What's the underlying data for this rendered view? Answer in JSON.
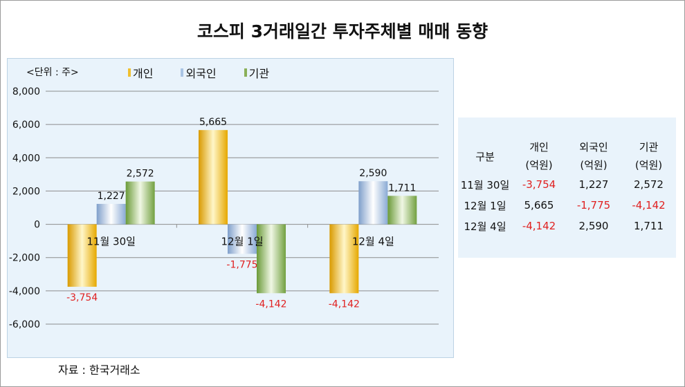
{
  "title": "코스피 3거래일간 투자주체별 매매 동향",
  "unit_label": "<단위 : 주>",
  "source": "자료 : 한국거래소",
  "colors": {
    "individual": "#f0c030",
    "foreign": "#a9c4e4",
    "institution": "#8ab058",
    "negative_text": "#e02020"
  },
  "chart_data": {
    "type": "bar",
    "categories": [
      "11월 30일",
      "12월 1일",
      "12월 4일"
    ],
    "series": [
      {
        "name": "개인",
        "values": [
          -3754,
          5665,
          -4142
        ]
      },
      {
        "name": "외국인",
        "values": [
          1227,
          -1775,
          2590
        ]
      },
      {
        "name": "기관",
        "values": [
          2572,
          -4142,
          1711
        ]
      }
    ],
    "value_labels": [
      [
        "-3,754",
        "5,665",
        "-4,142"
      ],
      [
        "1,227",
        "-1,775",
        "2,590"
      ],
      [
        "2,572",
        "-4,142",
        "1,711"
      ]
    ],
    "y_ticks": [
      8000,
      6000,
      4000,
      2000,
      0,
      -2000,
      -4000,
      -6000
    ],
    "y_tick_labels": [
      "8,000",
      "6,000",
      "4,000",
      "2,000",
      "0",
      "-2,000",
      "-4,000",
      "-6,000"
    ],
    "ylim": [
      -6000,
      8000
    ],
    "grid": true,
    "legend_position": "top"
  },
  "table": {
    "header": [
      [
        "구분"
      ],
      [
        "개인",
        "(억원)"
      ],
      [
        "외국인",
        "(억원)"
      ],
      [
        "기관",
        "(억원)"
      ]
    ],
    "rows": [
      [
        "11월 30일",
        "-3,754",
        "1,227",
        "2,572"
      ],
      [
        "12월 1일",
        "5,665",
        "-1,775",
        "-4,142"
      ],
      [
        "12월 4일",
        "-4,142",
        "2,590",
        "1,711"
      ]
    ]
  }
}
